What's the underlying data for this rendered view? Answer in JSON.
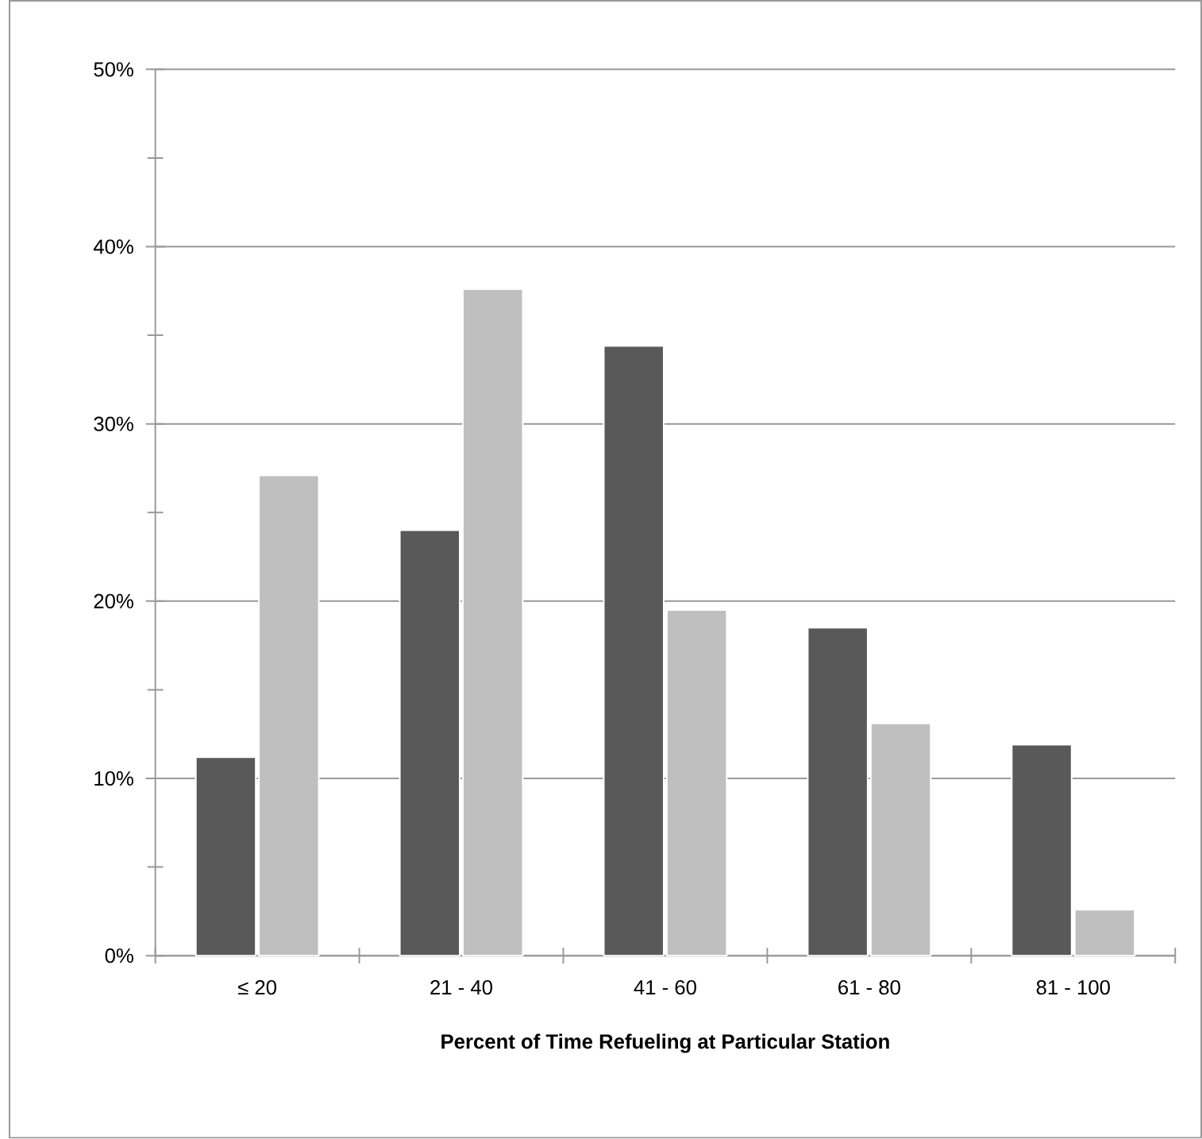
{
  "chart_data": {
    "type": "bar",
    "xlabel": "Percent of Time Refueling at Particular Station",
    "categories": [
      "≤ 20",
      "21 - 40",
      "41 - 60",
      "61 - 80",
      "81 - 100"
    ],
    "series": [
      {
        "color": "#595959",
        "values": [
          11.2,
          24.0,
          34.4,
          18.5,
          11.9
        ]
      },
      {
        "color": "#bfbfbf",
        "values": [
          27.1,
          37.6,
          19.5,
          13.1,
          2.6
        ]
      }
    ],
    "ylim": [
      0,
      50
    ],
    "yticks": [
      {
        "value": 0,
        "label": "0%"
      },
      {
        "value": 5,
        "label": null
      },
      {
        "value": 10,
        "label": "10%"
      },
      {
        "value": 15,
        "label": null
      },
      {
        "value": 20,
        "label": "20%"
      },
      {
        "value": 25,
        "label": null
      },
      {
        "value": 30,
        "label": "30%"
      },
      {
        "value": 35,
        "label": null
      },
      {
        "value": 40,
        "label": "40%"
      },
      {
        "value": 45,
        "label": null
      },
      {
        "value": 50,
        "label": "50%"
      }
    ],
    "grid": "y"
  }
}
